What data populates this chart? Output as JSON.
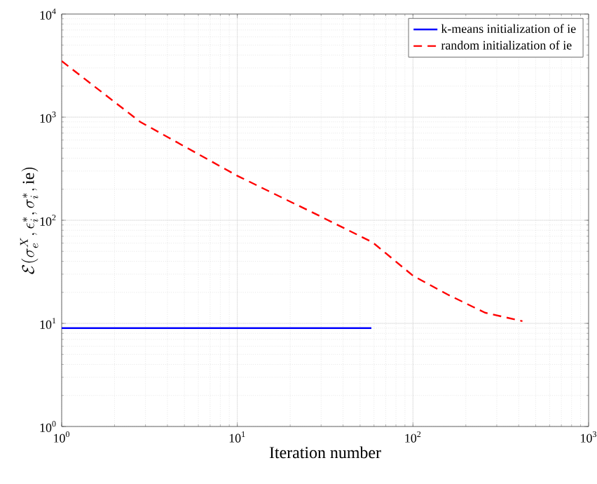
{
  "chart_data": {
    "type": "line",
    "log": "xy",
    "grid": true,
    "legend": "top right",
    "xlabel": "Iteration number",
    "ylabel": "\\mathcal{E}(\\sigma_e^{X}, \\epsilon_i^{*}, \\sigma_i^{*}, \\mathrm{ie})",
    "xlim": [
      1,
      1000
    ],
    "ylim": [
      1,
      10000
    ],
    "xticks": [
      {
        "value": 1,
        "label": "10$^{0}$"
      },
      {
        "value": 10,
        "label": "10$^{1}$"
      },
      {
        "value": 100,
        "label": "10$^{2}$"
      },
      {
        "value": 1000,
        "label": "10$^{3}$"
      }
    ],
    "yticks": [
      {
        "value": 1,
        "label": "10$^{0}$"
      },
      {
        "value": 10,
        "label": "10$^{1}$"
      },
      {
        "value": 100,
        "label": "10$^{2}$"
      },
      {
        "value": 1000,
        "label": "10$^{3}$"
      },
      {
        "value": 10000,
        "label": "10$^{4}$"
      }
    ],
    "series": [
      {
        "name": "k-means initialization of ie",
        "color": "#0000ff",
        "line_style": "solid",
        "x": [
          1,
          58
        ],
        "values": [
          9,
          9
        ]
      },
      {
        "name": "random initialization of ie",
        "color": "#ff0000",
        "line_style": "dashed",
        "x": [
          1,
          2.8,
          10,
          28.5,
          59,
          100,
          158,
          257,
          420
        ],
        "values": [
          3500,
          900,
          270,
          113,
          61,
          29,
          19,
          12.7,
          10.5
        ]
      }
    ]
  }
}
